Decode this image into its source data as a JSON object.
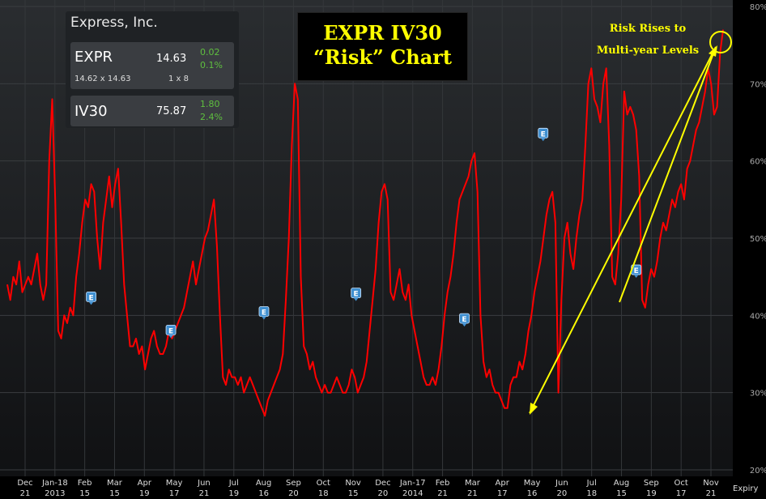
{
  "quote_panel": {
    "company": "Express, Inc.",
    "stock": {
      "symbol": "EXPR",
      "price": "14.63",
      "change": "0.02",
      "change_pct": "0.1%",
      "bid_ask": "14.62 x 14.63",
      "size": "1 x 8"
    },
    "iv": {
      "symbol": "IV30",
      "value": "75.87",
      "change": "1.80",
      "change_pct": "2.4%"
    }
  },
  "title_lines": [
    "EXPR IV30",
    "“Risk” Chart"
  ],
  "annotation_lines": [
    "Risk Rises to",
    "Multi-year Levels"
  ],
  "colors": {
    "background": "#000000",
    "series": "#ff0000",
    "annotation": "#ffff00",
    "earnings_marker": "#3f8fd0"
  },
  "chart_data": {
    "type": "line",
    "series": [
      {
        "y": [
          44,
          42,
          45,
          44,
          47,
          43,
          44,
          45,
          44,
          46,
          48,
          44,
          42,
          44,
          60,
          68,
          55,
          38,
          37,
          40,
          39,
          41,
          40,
          45,
          48,
          52,
          55,
          54,
          57,
          56,
          50,
          46,
          52,
          55,
          58,
          54,
          57,
          59,
          52,
          44,
          40,
          36,
          36,
          37,
          35,
          36,
          33,
          35,
          37,
          38,
          36,
          35,
          35,
          36,
          38,
          37,
          38,
          39,
          40,
          41,
          43,
          45,
          47,
          44,
          46,
          48,
          50,
          51,
          53,
          55,
          49,
          40,
          32,
          31,
          33,
          32,
          32,
          31,
          32,
          30,
          31,
          32,
          31,
          30,
          29,
          28,
          27,
          29,
          30,
          31,
          32,
          33,
          35,
          42,
          50,
          62,
          70,
          68,
          45,
          36,
          35,
          33,
          34,
          32,
          31,
          30,
          31,
          30,
          30,
          31,
          32,
          31,
          30,
          30,
          31,
          33,
          32,
          30,
          31,
          32,
          34,
          38,
          42,
          46,
          52,
          56,
          57,
          55,
          43,
          42,
          44,
          46,
          43,
          42,
          44,
          40,
          38,
          36,
          34,
          32,
          31,
          31,
          32,
          31,
          33,
          36,
          40,
          43,
          45,
          48,
          52,
          55,
          56,
          57,
          58,
          60,
          61,
          56,
          40,
          34,
          32,
          33,
          31,
          30,
          30,
          29,
          28,
          28,
          31,
          32,
          32,
          34,
          33,
          35,
          38,
          40,
          43,
          45,
          47,
          50,
          53,
          55,
          56,
          52,
          30,
          42,
          50,
          52,
          48,
          46,
          50,
          53,
          55,
          62,
          70,
          72,
          68,
          67,
          65,
          70,
          72,
          62,
          45,
          44,
          48,
          55,
          69,
          66,
          67,
          66,
          64,
          58,
          42,
          41,
          44,
          46,
          45,
          47,
          50,
          52,
          51,
          53,
          55,
          54,
          56,
          57,
          55,
          59,
          60,
          62,
          64,
          65,
          67,
          69,
          72,
          70,
          66,
          67,
          74,
          77
        ],
        "x_start": "2012-12-21",
        "x_end": "2014-11-21"
      }
    ],
    "ylim": [
      20,
      80
    ],
    "yticks": [
      "80%",
      "70%",
      "60%",
      "50%",
      "40%",
      "30%",
      "20%"
    ],
    "xticks": [
      {
        "m": "Dec",
        "d": "21"
      },
      {
        "m": "Jan-18",
        "d": "2013"
      },
      {
        "m": "Feb",
        "d": "15"
      },
      {
        "m": "Mar",
        "d": "15"
      },
      {
        "m": "Apr",
        "d": "19"
      },
      {
        "m": "May",
        "d": "17"
      },
      {
        "m": "Jun",
        "d": "21"
      },
      {
        "m": "Jul",
        "d": "19"
      },
      {
        "m": "Aug",
        "d": "16"
      },
      {
        "m": "Sep",
        "d": "20"
      },
      {
        "m": "Oct",
        "d": "18"
      },
      {
        "m": "Nov",
        "d": "15"
      },
      {
        "m": "Dec",
        "d": "20"
      },
      {
        "m": "Jan-17",
        "d": "2014"
      },
      {
        "m": "Feb",
        "d": "21"
      },
      {
        "m": "Mar",
        "d": "21"
      },
      {
        "m": "Apr",
        "d": "17"
      },
      {
        "m": "May",
        "d": "16"
      },
      {
        "m": "Jun",
        "d": "20"
      },
      {
        "m": "Jul",
        "d": "18"
      },
      {
        "m": "Aug",
        "d": "15"
      },
      {
        "m": "Sep",
        "d": "19"
      },
      {
        "m": "Oct",
        "d": "17"
      },
      {
        "m": "Nov",
        "d": "21"
      }
    ],
    "x_axis_label": "Expiry",
    "earnings_markers": [
      {
        "label": "E",
        "date": "2013-03-13",
        "y": 42.3
      },
      {
        "label": "E",
        "date": "2013-05-30",
        "y": 38.0
      },
      {
        "label": "E",
        "date": "2013-08-29",
        "y": 40.4
      },
      {
        "label": "E",
        "date": "2013-11-27",
        "y": 42.8
      },
      {
        "label": "E",
        "date": "2014-03-13",
        "y": 39.5
      },
      {
        "label": "E",
        "date": "2014-05-29",
        "y": 63.5
      },
      {
        "label": "E",
        "date": "2014-08-28",
        "y": 45.8
      }
    ],
    "grid": true
  }
}
